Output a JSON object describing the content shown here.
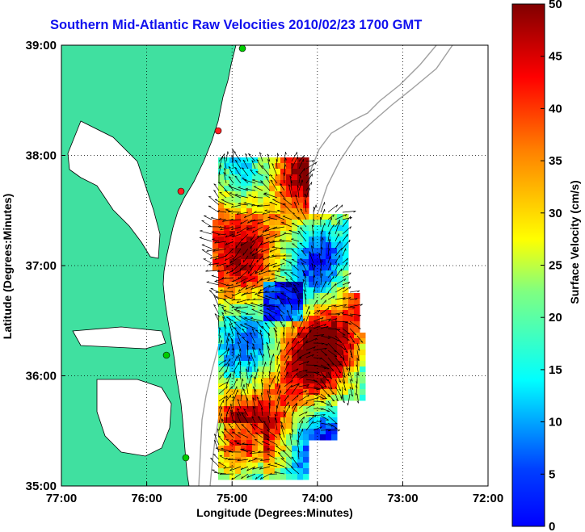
{
  "title": "Southern Mid-Atlantic Raw Velocities 2010/02/23 1700 GMT",
  "x_axis": {
    "label": "Longitude (Degrees:Minutes)",
    "ticks": [
      "77:00",
      "76:00",
      "75:00",
      "74:00",
      "73:00",
      "72:00"
    ]
  },
  "y_axis": {
    "label": "Latitude (Degrees:Minutes)",
    "ticks": [
      "39:00",
      "38:00",
      "37:00",
      "36:00",
      "35:00"
    ]
  },
  "colorbar": {
    "label": "Surface Velocity (cm/s)",
    "ticks": [
      "50",
      "45",
      "40",
      "35",
      "30",
      "25",
      "20",
      "15",
      "10",
      "5",
      "0"
    ],
    "min": 0,
    "max": 50,
    "colormap": "jet"
  },
  "map": {
    "lon_range": [
      -77,
      -72
    ],
    "lat_range": [
      35,
      39
    ],
    "land_color": "#40e0a0",
    "water_color": "#ffffff",
    "bathymetry_color": "#a0a0a0",
    "grid": "dotted"
  },
  "stations": [
    {
      "color": "#00cc00"
    },
    {
      "color": "#ff2020"
    },
    {
      "color": "#ff2020"
    },
    {
      "color": "#00cc00"
    },
    {
      "color": "#00cc00"
    }
  ]
}
